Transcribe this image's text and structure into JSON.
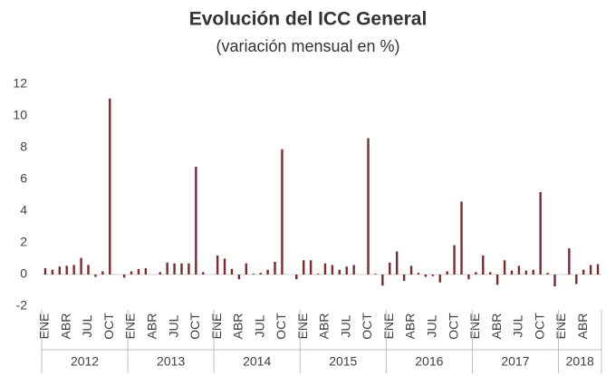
{
  "chart_data": {
    "type": "bar",
    "title": "Evolución del ICC General",
    "subtitle": "(variación mensual en %)",
    "color": "#7b2b2b",
    "categories": [
      "ENE",
      null,
      null,
      "ABR",
      null,
      null,
      "JUL",
      null,
      null,
      "OCT",
      null,
      null,
      "ENE",
      null,
      null,
      "ABR",
      null,
      null,
      "JUL",
      null,
      null,
      "OCT",
      null,
      null,
      "ENE",
      null,
      null,
      "ABR",
      null,
      null,
      "JUL",
      null,
      null,
      "OCT",
      null,
      null,
      "ENE",
      null,
      null,
      "ABR",
      null,
      null,
      "JUL",
      null,
      null,
      "OCT",
      null,
      null,
      "ENE",
      null,
      null,
      "ABR",
      null,
      null,
      "JUL",
      null,
      null,
      "OCT",
      null,
      null,
      "ENE",
      null,
      null,
      "ABR",
      null,
      null,
      "JUL",
      null,
      null,
      "OCT",
      null,
      null,
      "ENE",
      null,
      null,
      "ABR",
      null,
      null
    ],
    "groups": [
      "2012",
      "2013",
      "2014",
      "2015",
      "2016",
      "2017",
      "2018"
    ],
    "values": [
      0.4,
      0.3,
      0.5,
      0.55,
      0.6,
      1.05,
      0.6,
      -0.15,
      0.2,
      11.1,
      0.0,
      -0.2,
      0.2,
      0.35,
      0.4,
      0.0,
      0.15,
      0.75,
      0.7,
      0.7,
      0.7,
      6.8,
      0.15,
      0.0,
      1.2,
      1.0,
      0.35,
      -0.3,
      0.7,
      0.05,
      0.1,
      0.3,
      0.8,
      7.9,
      0.0,
      -0.3,
      0.9,
      0.9,
      0.05,
      0.7,
      0.6,
      0.3,
      0.5,
      0.6,
      0.0,
      8.6,
      0.05,
      -0.7,
      0.75,
      1.45,
      -0.4,
      0.55,
      0.1,
      -0.15,
      -0.1,
      -0.5,
      0.2,
      1.85,
      4.6,
      -0.3,
      0.15,
      1.2,
      0.15,
      -0.65,
      0.9,
      0.25,
      0.55,
      0.25,
      0.3,
      5.2,
      0.1,
      -0.75,
      0.0,
      1.65,
      -0.6,
      0.3,
      0.6,
      0.65
    ],
    "ylim": [
      -2,
      12
    ],
    "yticks": [
      -2,
      0,
      2,
      4,
      6,
      8,
      10,
      12
    ],
    "grid": false
  }
}
